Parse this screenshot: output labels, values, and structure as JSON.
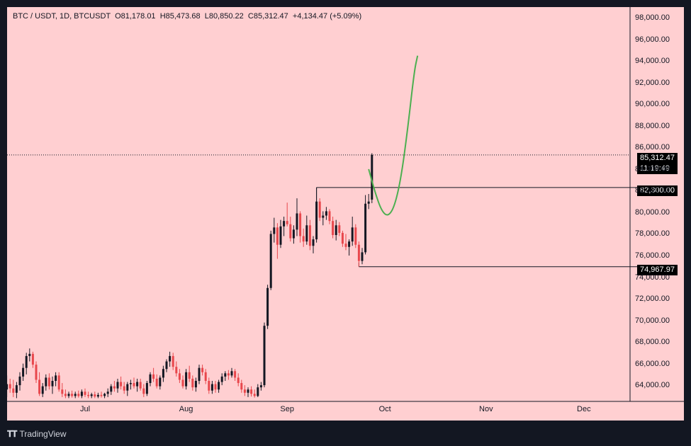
{
  "header": {
    "symbol": "BTC / USDT, 1D, BTCUSDT",
    "open": "O81,178.01",
    "high": "H85,473.68",
    "low": "L80,850.22",
    "close": "C85,312.47",
    "change": "+4,134.47 (+5.09%)"
  },
  "price_tags": {
    "current_price": "85,312.47",
    "countdown": "11:19:49",
    "resistance": "82,300.00",
    "support": "74,967.97"
  },
  "colors": {
    "background": "#ffcfd1",
    "up_candle": "#131722",
    "down_candle": "#e8474c",
    "projection": "#4caf50"
  },
  "footer": {
    "brand": "TradingView"
  },
  "chart_data": {
    "type": "candlestick",
    "ylim": [
      62500,
      99000
    ],
    "y_ticks": [
      "98,000.00",
      "96,000.00",
      "94,000.00",
      "92,000.00",
      "90,000.00",
      "88,000.00",
      "86,000.00",
      "84,000.00",
      "82,000.00",
      "80,000.00",
      "78,000.00",
      "76,000.00",
      "74,000.00",
      "72,000.00",
      "70,000.00",
      "68,000.00",
      "66,000.00",
      "64,000.00"
    ],
    "x_ticks": [
      {
        "label": "Jul",
        "date": "2024-07-01"
      },
      {
        "label": "Aug",
        "date": "2024-08-01"
      },
      {
        "label": "Sep",
        "date": "2024-09-01"
      },
      {
        "label": "Oct",
        "date": "2024-10-01"
      },
      {
        "label": "Nov",
        "date": "2024-11-01"
      },
      {
        "label": "Dec",
        "date": "2024-12-01"
      }
    ],
    "candles": [
      {
        "date": "2024-06-07",
        "o": 63600,
        "h": 64900,
        "l": 62900,
        "c": 64100
      },
      {
        "date": "2024-06-08",
        "o": 64100,
        "h": 64600,
        "l": 63300,
        "c": 63700
      },
      {
        "date": "2024-06-09",
        "o": 63700,
        "h": 64500,
        "l": 62900,
        "c": 63300
      },
      {
        "date": "2024-06-10",
        "o": 63300,
        "h": 64300,
        "l": 62800,
        "c": 64000
      },
      {
        "date": "2024-06-11",
        "o": 64000,
        "h": 65200,
        "l": 63500,
        "c": 64800
      },
      {
        "date": "2024-06-12",
        "o": 64800,
        "h": 66000,
        "l": 64400,
        "c": 65600
      },
      {
        "date": "2024-06-13",
        "o": 65600,
        "h": 67000,
        "l": 65000,
        "c": 66700
      },
      {
        "date": "2024-06-14",
        "o": 66700,
        "h": 67400,
        "l": 66200,
        "c": 66900
      },
      {
        "date": "2024-06-15",
        "o": 66900,
        "h": 67100,
        "l": 65600,
        "c": 65900
      },
      {
        "date": "2024-06-16",
        "o": 65900,
        "h": 66200,
        "l": 64200,
        "c": 64500
      },
      {
        "date": "2024-06-17",
        "o": 64500,
        "h": 65200,
        "l": 63000,
        "c": 63200
      },
      {
        "date": "2024-06-18",
        "o": 63200,
        "h": 64200,
        "l": 62900,
        "c": 63900
      },
      {
        "date": "2024-06-19",
        "o": 63900,
        "h": 65000,
        "l": 63500,
        "c": 64700
      },
      {
        "date": "2024-06-20",
        "o": 64700,
        "h": 65100,
        "l": 63600,
        "c": 63900
      },
      {
        "date": "2024-06-21",
        "o": 63900,
        "h": 64800,
        "l": 63200,
        "c": 64400
      },
      {
        "date": "2024-06-22",
        "o": 64400,
        "h": 65200,
        "l": 63900,
        "c": 64900
      },
      {
        "date": "2024-06-23",
        "o": 64900,
        "h": 65200,
        "l": 63400,
        "c": 63600
      },
      {
        "date": "2024-06-24",
        "o": 63600,
        "h": 64200,
        "l": 62900,
        "c": 63200
      },
      {
        "date": "2024-06-25",
        "o": 63200,
        "h": 63600,
        "l": 62800,
        "c": 63000
      },
      {
        "date": "2024-06-26",
        "o": 63000,
        "h": 63400,
        "l": 62800,
        "c": 63200
      },
      {
        "date": "2024-06-27",
        "o": 63200,
        "h": 63500,
        "l": 62850,
        "c": 63000
      },
      {
        "date": "2024-06-28",
        "o": 63000,
        "h": 63400,
        "l": 62800,
        "c": 63200
      },
      {
        "date": "2024-06-29",
        "o": 63200,
        "h": 63500,
        "l": 62850,
        "c": 63000
      },
      {
        "date": "2024-06-30",
        "o": 63000,
        "h": 63600,
        "l": 62800,
        "c": 63400
      },
      {
        "date": "2024-07-01",
        "o": 63400,
        "h": 63700,
        "l": 62900,
        "c": 63100
      },
      {
        "date": "2024-07-02",
        "o": 63100,
        "h": 63400,
        "l": 62800,
        "c": 63000
      },
      {
        "date": "2024-07-03",
        "o": 63000,
        "h": 63300,
        "l": 62800,
        "c": 63150
      },
      {
        "date": "2024-07-04",
        "o": 63150,
        "h": 63400,
        "l": 62800,
        "c": 62950
      },
      {
        "date": "2024-07-05",
        "o": 62950,
        "h": 63300,
        "l": 62800,
        "c": 63100
      },
      {
        "date": "2024-07-06",
        "o": 63100,
        "h": 63400,
        "l": 62850,
        "c": 63000
      },
      {
        "date": "2024-07-07",
        "o": 63000,
        "h": 63300,
        "l": 62800,
        "c": 63200
      },
      {
        "date": "2024-07-08",
        "o": 63200,
        "h": 63700,
        "l": 62900,
        "c": 63400
      },
      {
        "date": "2024-07-09",
        "o": 63400,
        "h": 64100,
        "l": 63100,
        "c": 63900
      },
      {
        "date": "2024-07-10",
        "o": 63900,
        "h": 64400,
        "l": 63400,
        "c": 63700
      },
      {
        "date": "2024-07-11",
        "o": 63700,
        "h": 64600,
        "l": 63300,
        "c": 64300
      },
      {
        "date": "2024-07-12",
        "o": 64300,
        "h": 64800,
        "l": 63600,
        "c": 63900
      },
      {
        "date": "2024-07-13",
        "o": 63900,
        "h": 64300,
        "l": 63200,
        "c": 63500
      },
      {
        "date": "2024-07-14",
        "o": 63500,
        "h": 64300,
        "l": 63000,
        "c": 64100
      },
      {
        "date": "2024-07-15",
        "o": 64100,
        "h": 64500,
        "l": 63600,
        "c": 64200
      },
      {
        "date": "2024-07-16",
        "o": 64200,
        "h": 64700,
        "l": 63700,
        "c": 63900
      },
      {
        "date": "2024-07-17",
        "o": 63900,
        "h": 64600,
        "l": 63400,
        "c": 64300
      },
      {
        "date": "2024-07-18",
        "o": 64300,
        "h": 64600,
        "l": 63500,
        "c": 63700
      },
      {
        "date": "2024-07-19",
        "o": 63700,
        "h": 64100,
        "l": 62900,
        "c": 63200
      },
      {
        "date": "2024-07-20",
        "o": 63200,
        "h": 64400,
        "l": 63000,
        "c": 64200
      },
      {
        "date": "2024-07-21",
        "o": 64200,
        "h": 65200,
        "l": 63900,
        "c": 65000
      },
      {
        "date": "2024-07-22",
        "o": 65000,
        "h": 65600,
        "l": 64300,
        "c": 64600
      },
      {
        "date": "2024-07-23",
        "o": 64600,
        "h": 65000,
        "l": 63700,
        "c": 63900
      },
      {
        "date": "2024-07-24",
        "o": 63900,
        "h": 64900,
        "l": 63600,
        "c": 64700
      },
      {
        "date": "2024-07-25",
        "o": 64700,
        "h": 65800,
        "l": 64300,
        "c": 65500
      },
      {
        "date": "2024-07-26",
        "o": 65500,
        "h": 66400,
        "l": 65200,
        "c": 66200
      },
      {
        "date": "2024-07-27",
        "o": 66200,
        "h": 67100,
        "l": 65700,
        "c": 66700
      },
      {
        "date": "2024-07-28",
        "o": 66700,
        "h": 67000,
        "l": 65400,
        "c": 65700
      },
      {
        "date": "2024-07-29",
        "o": 65700,
        "h": 66200,
        "l": 64800,
        "c": 65100
      },
      {
        "date": "2024-07-30",
        "o": 65100,
        "h": 65500,
        "l": 64200,
        "c": 64500
      },
      {
        "date": "2024-07-31",
        "o": 64500,
        "h": 64900,
        "l": 63700,
        "c": 63900
      },
      {
        "date": "2024-08-01",
        "o": 63900,
        "h": 65500,
        "l": 63600,
        "c": 65200
      },
      {
        "date": "2024-08-02",
        "o": 65200,
        "h": 65800,
        "l": 64300,
        "c": 64600
      },
      {
        "date": "2024-08-03",
        "o": 64600,
        "h": 64900,
        "l": 63500,
        "c": 63800
      },
      {
        "date": "2024-08-04",
        "o": 63800,
        "h": 64700,
        "l": 63400,
        "c": 64400
      },
      {
        "date": "2024-08-05",
        "o": 64400,
        "h": 65900,
        "l": 64100,
        "c": 65600
      },
      {
        "date": "2024-08-06",
        "o": 65600,
        "h": 65900,
        "l": 64900,
        "c": 65200
      },
      {
        "date": "2024-08-07",
        "o": 65200,
        "h": 65500,
        "l": 64100,
        "c": 64400
      },
      {
        "date": "2024-08-08",
        "o": 64400,
        "h": 64700,
        "l": 63200,
        "c": 63500
      },
      {
        "date": "2024-08-09",
        "o": 63500,
        "h": 64400,
        "l": 63200,
        "c": 64100
      },
      {
        "date": "2024-08-10",
        "o": 64100,
        "h": 64400,
        "l": 63300,
        "c": 63600
      },
      {
        "date": "2024-08-11",
        "o": 63600,
        "h": 64500,
        "l": 63300,
        "c": 64300
      },
      {
        "date": "2024-08-12",
        "o": 64300,
        "h": 65100,
        "l": 64000,
        "c": 64800
      },
      {
        "date": "2024-08-13",
        "o": 64800,
        "h": 65300,
        "l": 64400,
        "c": 65100
      },
      {
        "date": "2024-08-14",
        "o": 65100,
        "h": 65400,
        "l": 64500,
        "c": 64900
      },
      {
        "date": "2024-08-15",
        "o": 64900,
        "h": 65600,
        "l": 64700,
        "c": 65300
      },
      {
        "date": "2024-08-16",
        "o": 65300,
        "h": 65500,
        "l": 64400,
        "c": 64700
      },
      {
        "date": "2024-08-17",
        "o": 64700,
        "h": 65100,
        "l": 63900,
        "c": 64200
      },
      {
        "date": "2024-08-18",
        "o": 64200,
        "h": 64500,
        "l": 63300,
        "c": 63600
      },
      {
        "date": "2024-08-19",
        "o": 63600,
        "h": 64000,
        "l": 63000,
        "c": 63300
      },
      {
        "date": "2024-08-20",
        "o": 63300,
        "h": 63800,
        "l": 62900,
        "c": 63600
      },
      {
        "date": "2024-08-21",
        "o": 63600,
        "h": 63900,
        "l": 62950,
        "c": 63200
      },
      {
        "date": "2024-08-22",
        "o": 63200,
        "h": 63600,
        "l": 62850,
        "c": 63000
      },
      {
        "date": "2024-08-23",
        "o": 63000,
        "h": 64100,
        "l": 62900,
        "c": 63800
      },
      {
        "date": "2024-08-24",
        "o": 63800,
        "h": 64300,
        "l": 63500,
        "c": 64000
      },
      {
        "date": "2024-08-25",
        "o": 64000,
        "h": 69800,
        "l": 63800,
        "c": 69500
      },
      {
        "date": "2024-08-26",
        "o": 69500,
        "h": 73300,
        "l": 69200,
        "c": 73000
      },
      {
        "date": "2024-08-27",
        "o": 73000,
        "h": 78300,
        "l": 72800,
        "c": 78000
      },
      {
        "date": "2024-08-28",
        "o": 78000,
        "h": 79500,
        "l": 77200,
        "c": 78600
      },
      {
        "date": "2024-08-29",
        "o": 78600,
        "h": 79000,
        "l": 75700,
        "c": 77000
      },
      {
        "date": "2024-08-30",
        "o": 77000,
        "h": 79300,
        "l": 76700,
        "c": 78700
      },
      {
        "date": "2024-08-31",
        "o": 78700,
        "h": 79600,
        "l": 77800,
        "c": 79200
      },
      {
        "date": "2024-09-01",
        "o": 79200,
        "h": 80900,
        "l": 78700,
        "c": 78900
      },
      {
        "date": "2024-09-02",
        "o": 78900,
        "h": 79600,
        "l": 77300,
        "c": 77600
      },
      {
        "date": "2024-09-03",
        "o": 77600,
        "h": 78800,
        "l": 77100,
        "c": 78400
      },
      {
        "date": "2024-09-04",
        "o": 78400,
        "h": 81300,
        "l": 77800,
        "c": 79900
      },
      {
        "date": "2024-09-05",
        "o": 79900,
        "h": 80100,
        "l": 77200,
        "c": 77800
      },
      {
        "date": "2024-09-06",
        "o": 77800,
        "h": 78500,
        "l": 76800,
        "c": 77300
      },
      {
        "date": "2024-09-07",
        "o": 77300,
        "h": 79700,
        "l": 77000,
        "c": 78800
      },
      {
        "date": "2024-09-08",
        "o": 78800,
        "h": 79300,
        "l": 76500,
        "c": 76900
      },
      {
        "date": "2024-09-09",
        "o": 76900,
        "h": 77800,
        "l": 76200,
        "c": 77500
      },
      {
        "date": "2024-09-10",
        "o": 77500,
        "h": 82300,
        "l": 77200,
        "c": 81000
      },
      {
        "date": "2024-09-11",
        "o": 81000,
        "h": 81300,
        "l": 79200,
        "c": 79500
      },
      {
        "date": "2024-09-12",
        "o": 79500,
        "h": 80100,
        "l": 78800,
        "c": 79700
      },
      {
        "date": "2024-09-13",
        "o": 79700,
        "h": 80500,
        "l": 79300,
        "c": 80100
      },
      {
        "date": "2024-09-14",
        "o": 80100,
        "h": 80300,
        "l": 78900,
        "c": 79200
      },
      {
        "date": "2024-09-15",
        "o": 79200,
        "h": 79600,
        "l": 77600,
        "c": 77900
      },
      {
        "date": "2024-09-16",
        "o": 77900,
        "h": 79300,
        "l": 77400,
        "c": 78800
      },
      {
        "date": "2024-09-17",
        "o": 78800,
        "h": 79100,
        "l": 77800,
        "c": 78100
      },
      {
        "date": "2024-09-18",
        "o": 78100,
        "h": 78300,
        "l": 76800,
        "c": 77100
      },
      {
        "date": "2024-09-19",
        "o": 77100,
        "h": 78000,
        "l": 76500,
        "c": 76800
      },
      {
        "date": "2024-09-20",
        "o": 76800,
        "h": 77500,
        "l": 76000,
        "c": 77300
      },
      {
        "date": "2024-09-21",
        "o": 77300,
        "h": 79600,
        "l": 76900,
        "c": 78600
      },
      {
        "date": "2024-09-22",
        "o": 78600,
        "h": 78900,
        "l": 76700,
        "c": 77000
      },
      {
        "date": "2024-09-23",
        "o": 77000,
        "h": 77300,
        "l": 74967.97,
        "c": 75500
      },
      {
        "date": "2024-09-24",
        "o": 75500,
        "h": 76700,
        "l": 75200,
        "c": 76300
      },
      {
        "date": "2024-09-25",
        "o": 76300,
        "h": 81600,
        "l": 76100,
        "c": 80800
      },
      {
        "date": "2024-09-26",
        "o": 80800,
        "h": 81700,
        "l": 80300,
        "c": 81000
      },
      {
        "date": "2024-09-27",
        "o": 81178.01,
        "h": 85473.68,
        "l": 80850.22,
        "c": 85312.47
      }
    ],
    "levels": [
      {
        "label": "82,300.00",
        "value": 82300,
        "from": "2024-09-10"
      },
      {
        "label": "74,967.97",
        "value": 74967.97,
        "from": "2024-09-23"
      }
    ],
    "current_price": 85312.47,
    "projection_path": [
      {
        "date": "2024-09-26",
        "y": 84000
      },
      {
        "date": "2024-09-28",
        "y": 81800
      },
      {
        "date": "2024-09-30",
        "y": 80100
      },
      {
        "date": "2024-10-02",
        "y": 79600
      },
      {
        "date": "2024-10-04",
        "y": 80600
      },
      {
        "date": "2024-10-06",
        "y": 83300
      },
      {
        "date": "2024-10-08",
        "y": 87800
      },
      {
        "date": "2024-10-10",
        "y": 93100
      },
      {
        "date": "2024-10-11",
        "y": 94500
      }
    ]
  }
}
